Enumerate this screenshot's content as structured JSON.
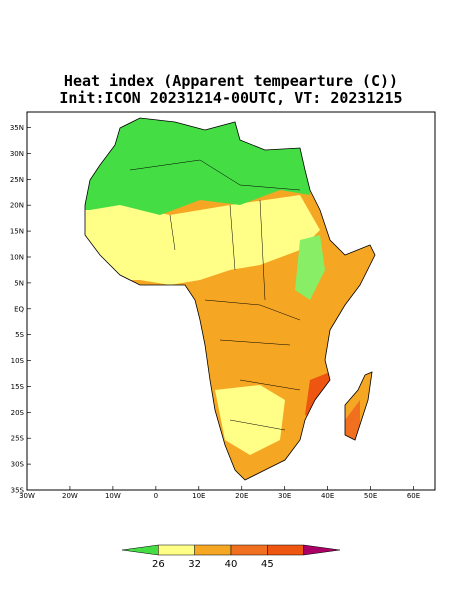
{
  "map": {
    "title": "Heat index (Apparent tempearture (C))",
    "subtitle": "Init:ICON 20231214-00UTC, VT: 20231215",
    "xlim": [
      -30,
      65
    ],
    "ylim": [
      -35,
      38
    ],
    "xticks": [
      {
        "value": -30,
        "label": "30W"
      },
      {
        "value": -20,
        "label": "20W"
      },
      {
        "value": -10,
        "label": "10W"
      },
      0,
      {
        "value": 10,
        "label": "10E"
      },
      {
        "value": 20,
        "label": "20E"
      },
      {
        "value": 30,
        "label": "30E"
      },
      {
        "value": 40,
        "label": "40E"
      },
      {
        "value": 50,
        "label": "50E"
      },
      {
        "value": 60,
        "label": "60E"
      }
    ],
    "yticks": [
      {
        "value": 35,
        "label": "35N"
      },
      {
        "value": 30,
        "label": "30N"
      },
      {
        "value": 25,
        "label": "25N"
      },
      {
        "value": 20,
        "label": "20N"
      },
      {
        "value": 15,
        "label": "15N"
      },
      {
        "value": 10,
        "label": "10N"
      },
      {
        "value": 5,
        "label": "5N"
      },
      {
        "value": 0,
        "label": "EQ"
      },
      {
        "value": -5,
        "label": "5S"
      },
      {
        "value": -10,
        "label": "10S"
      },
      {
        "value": -15,
        "label": "15S"
      },
      {
        "value": -20,
        "label": "20S"
      },
      {
        "value": -25,
        "label": "25S"
      },
      {
        "value": -30,
        "label": "30S"
      },
      {
        "value": -35,
        "label": "35S"
      }
    ],
    "colorbar": {
      "colors": [
        "#44dd44",
        "#ffff88",
        "#f5a623",
        "#f07020",
        "#ee5511",
        "#aa0066"
      ],
      "ticks": [
        26,
        32,
        40,
        45
      ]
    }
  }
}
